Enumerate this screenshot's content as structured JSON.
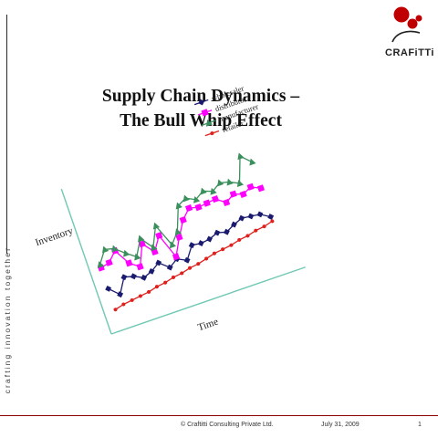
{
  "sidebar": {
    "tagline": "crafting innovation together"
  },
  "logo": {
    "text": "CRAFiTTi"
  },
  "slide": {
    "title_line1": "Supply Chain Dynamics –",
    "title_line2": "The Bull Whip Effect"
  },
  "footer": {
    "copyright": "© Craftitti Consulting Private Ltd.",
    "date": "July 31, 2009",
    "page": "1"
  },
  "colors": {
    "wholesaler": "#1a1a6e",
    "distributor": "#ff00ff",
    "manufacturer": "#3a8f5c",
    "retailer": "#e0201c",
    "axis": "#6fc8b4",
    "accent": "#c00000"
  },
  "chart_data": {
    "type": "line",
    "xlabel": "Time",
    "ylabel": "Inventory",
    "grid": false,
    "legend": "top-right",
    "x": [
      1,
      2,
      3,
      4,
      5,
      6,
      7,
      8,
      9,
      10,
      11,
      12,
      13,
      14,
      15,
      16,
      17,
      18,
      19,
      20
    ],
    "series": [
      {
        "name": "wholesaler",
        "marker": "diamond",
        "values": [
          33,
          25,
          38,
          36,
          32,
          35,
          40,
          33,
          38,
          34,
          45,
          44,
          45,
          48,
          46,
          50,
          53,
          52,
          51,
          46
        ]
      },
      {
        "name": "distributor",
        "marker": "square",
        "values": [
          52,
          54,
          62,
          48,
          42,
          60,
          50,
          62,
          40,
          55,
          68,
          76,
          74,
          75,
          76,
          70,
          75,
          72,
          76,
          72
        ]
      },
      {
        "name": "manufacturer",
        "marker": "triangle",
        "values": [
          55,
          66,
          64,
          57,
          51,
          65,
          54,
          71,
          51,
          60,
          81,
          85,
          81,
          86,
          83,
          88,
          86,
          82,
          104,
          96
        ]
      },
      {
        "name": "retailer",
        "marker": "dot",
        "values": [
          14,
          16,
          17,
          18,
          19,
          21,
          22,
          24,
          25,
          27,
          28,
          30,
          32,
          33,
          34,
          36,
          37,
          39,
          40,
          42
        ]
      }
    ]
  }
}
